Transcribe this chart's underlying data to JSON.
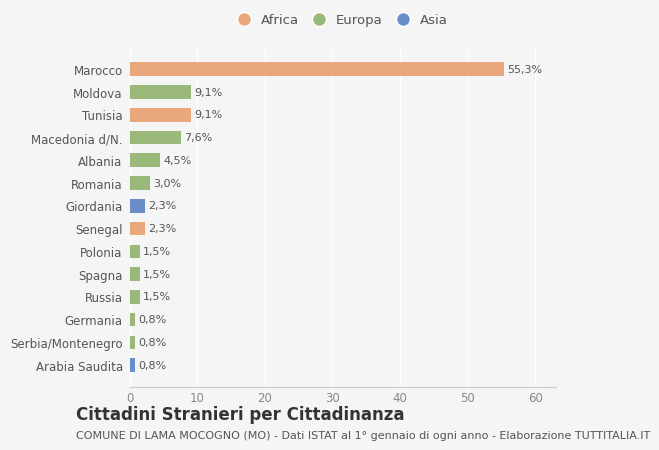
{
  "categories": [
    "Arabia Saudita",
    "Serbia/Montenegro",
    "Germania",
    "Russia",
    "Spagna",
    "Polonia",
    "Senegal",
    "Giordania",
    "Romania",
    "Albania",
    "Macedonia d/N.",
    "Tunisia",
    "Moldova",
    "Marocco"
  ],
  "values": [
    0.8,
    0.8,
    0.8,
    1.5,
    1.5,
    1.5,
    2.3,
    2.3,
    3.0,
    4.5,
    7.6,
    9.1,
    9.1,
    55.3
  ],
  "colors": [
    "#6a8fc8",
    "#9ab87a",
    "#9ab87a",
    "#9ab87a",
    "#9ab87a",
    "#9ab87a",
    "#e8a87c",
    "#6a8fc8",
    "#9ab87a",
    "#9ab87a",
    "#9ab87a",
    "#e8a87c",
    "#9ab87a",
    "#e8a87c"
  ],
  "labels": [
    "0,8%",
    "0,8%",
    "0,8%",
    "1,5%",
    "1,5%",
    "1,5%",
    "2,3%",
    "2,3%",
    "3,0%",
    "4,5%",
    "7,6%",
    "9,1%",
    "9,1%",
    "55,3%"
  ],
  "legend": [
    {
      "label": "Africa",
      "color": "#e8a87c"
    },
    {
      "label": "Europa",
      "color": "#9ab87a"
    },
    {
      "label": "Asia",
      "color": "#6a8fc8"
    }
  ],
  "xlim": [
    0,
    63
  ],
  "xticks": [
    0,
    10,
    20,
    30,
    40,
    50,
    60
  ],
  "title": "Cittadini Stranieri per Cittadinanza",
  "subtitle": "COMUNE DI LAMA MOCOGNO (MO) - Dati ISTAT al 1° gennaio di ogni anno - Elaborazione TUTTITALIA.IT",
  "title_fontsize": 12,
  "subtitle_fontsize": 8,
  "label_fontsize": 8,
  "tick_fontsize": 8.5,
  "bg_color": "#f5f5f5",
  "bar_height": 0.6
}
